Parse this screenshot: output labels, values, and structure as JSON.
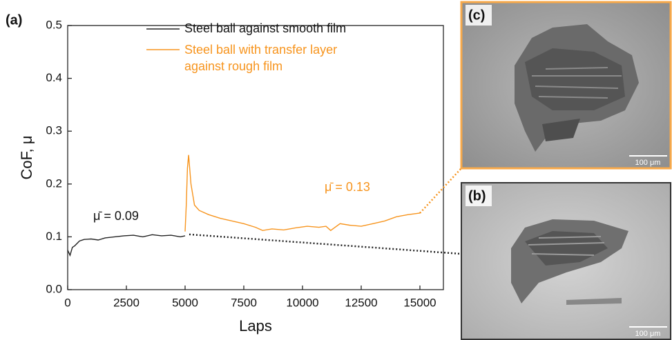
{
  "chart_data": {
    "type": "line",
    "panel_label": "(a)",
    "xlabel": "Laps",
    "ylabel": "CoF, μ",
    "xlim": [
      0,
      16000
    ],
    "ylim": [
      0,
      0.5
    ],
    "xticks": [
      0,
      2500,
      5000,
      7500,
      10000,
      12500,
      15000
    ],
    "yticks": [
      {
        "value": 0,
        "label": "0.0"
      },
      0.1,
      0.2,
      0.3,
      0.4,
      0.5
    ],
    "series": [
      {
        "name": "Steel ball against smooth film",
        "color": "#222222",
        "x": [
          0,
          100,
          200,
          300,
          500,
          700,
          1000,
          1300,
          1600,
          2000,
          2400,
          2800,
          3200,
          3600,
          4000,
          4400,
          4800,
          5000
        ],
        "values": [
          0.075,
          0.065,
          0.08,
          0.083,
          0.092,
          0.095,
          0.096,
          0.094,
          0.098,
          0.1,
          0.102,
          0.103,
          0.1,
          0.104,
          0.102,
          0.103,
          0.1,
          0.102
        ]
      },
      {
        "name": "Steel ball with transfer layer against rough film",
        "color": "#f7941d",
        "x": [
          5000,
          5050,
          5100,
          5150,
          5250,
          5400,
          5600,
          6000,
          6500,
          7000,
          7500,
          8000,
          8300,
          8700,
          9200,
          9700,
          10200,
          10700,
          11000,
          11200,
          11600,
          12000,
          12500,
          13000,
          13500,
          14000,
          14500,
          15000
        ],
        "values": [
          0.11,
          0.16,
          0.23,
          0.255,
          0.2,
          0.16,
          0.15,
          0.142,
          0.135,
          0.13,
          0.125,
          0.118,
          0.112,
          0.115,
          0.113,
          0.117,
          0.12,
          0.118,
          0.12,
          0.112,
          0.125,
          0.122,
          0.12,
          0.125,
          0.13,
          0.138,
          0.142,
          0.145
        ]
      }
    ],
    "annotations": [
      "μ̄ = 0.09",
      "μ̄ = 0.13"
    ]
  },
  "panels": [
    {
      "label": "(c)",
      "scale_bar": "100 μm"
    },
    {
      "label": "(b)",
      "scale_bar": "100 μm"
    }
  ]
}
